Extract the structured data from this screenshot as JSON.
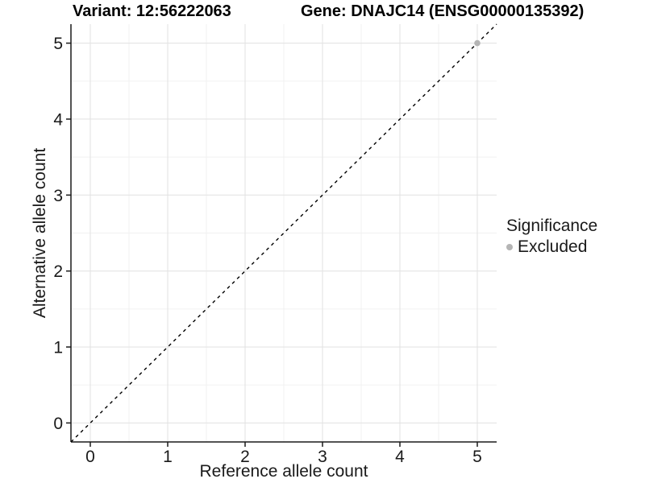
{
  "chart_data": {
    "type": "scatter",
    "titles": [
      "Variant: 12:56222063",
      "Gene: DNAJC14 (ENSG00000135392)"
    ],
    "xlabel": "Reference allele count",
    "ylabel": "Alternative allele count",
    "xlim": [
      -0.25,
      5.25
    ],
    "ylim": [
      -0.25,
      5.25
    ],
    "x_ticks": [
      0,
      1,
      2,
      3,
      4,
      5
    ],
    "y_ticks": [
      0,
      1,
      2,
      3,
      4,
      5
    ],
    "minor_ticks": [
      0.5,
      1.5,
      2.5,
      3.5,
      4.5
    ],
    "grid": "major+minor",
    "reference_line": {
      "kind": "identity y=x",
      "dash": "dashed",
      "color": "#000000"
    },
    "series": [
      {
        "name": "Excluded",
        "color": "#b5b5b5",
        "points": [
          {
            "x": 5,
            "y": 5
          }
        ]
      }
    ],
    "legend": {
      "title": "Significance",
      "position": "right",
      "items": [
        {
          "label": "Excluded",
          "color": "#b5b5b5"
        }
      ]
    },
    "colors": {
      "axis_line": "#1a1a1a",
      "grid_major": "#e4e4e4",
      "grid_minor": "#f0f0f0",
      "tick_text": "#1a1a1a",
      "background": "#ffffff"
    }
  }
}
